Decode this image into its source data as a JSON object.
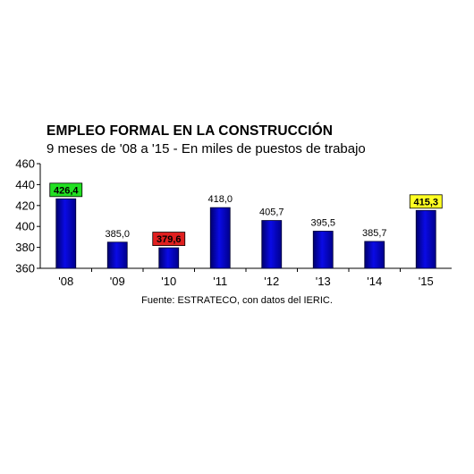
{
  "chart_data": {
    "type": "bar",
    "title": "EMPLEO FORMAL EN LA CONSTRUCCIÓN",
    "subtitle": "9 meses de '08 a '15 - En miles de puestos de trabajo",
    "source": "Fuente: ESTRATECO, con datos del IERIC.",
    "categories": [
      "'08",
      "'09",
      "'10",
      "'11",
      "'12",
      "'13",
      "'14",
      "'15"
    ],
    "values": [
      426.4,
      385.0,
      379.6,
      418.0,
      405.7,
      395.5,
      385.7,
      415.3
    ],
    "value_labels": [
      "426,4",
      "385,0",
      "379,6",
      "418,0",
      "405,7",
      "395,5",
      "385,7",
      "415,3"
    ],
    "label_highlights": [
      "#22e022",
      null,
      "#e02020",
      null,
      null,
      null,
      null,
      "#ffff22"
    ],
    "label_text_colors": [
      "#000000",
      "#000000",
      "#ffffff",
      "#000000",
      "#000000",
      "#000000",
      "#000000",
      "#000000"
    ],
    "ylim": [
      360,
      460
    ],
    "yticks": [
      360,
      380,
      400,
      420,
      440,
      460
    ],
    "bar_color": "#0a0ae6",
    "grid": false,
    "legend": "none"
  }
}
